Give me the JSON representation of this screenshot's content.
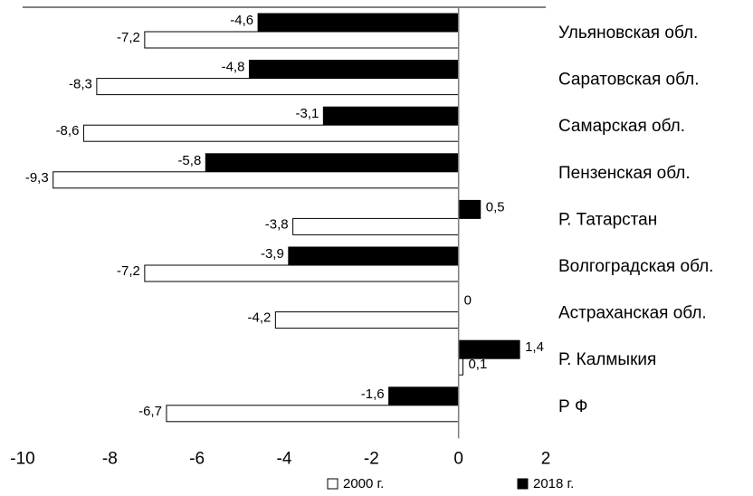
{
  "chart_data": {
    "type": "barh",
    "categories": [
      "Ульяновская обл.",
      "Саратовская обл.",
      "Самарская обл.",
      "Пензенская обл.",
      "Р. Татарстан",
      "Волгоградская обл.",
      "Астраханская обл.",
      "Р. Калмыкия",
      "Р Ф"
    ],
    "series": [
      {
        "name": "2018 г.",
        "color": "#000000",
        "values": [
          -4.6,
          -4.8,
          -3.1,
          -5.8,
          0.5,
          -3.9,
          0,
          1.4,
          -1.6
        ],
        "value_labels": [
          "-4,6",
          "-4,8",
          "-3,1",
          "-5,8",
          "0,5",
          "-3,9",
          "0",
          "1,4",
          "-1,6"
        ]
      },
      {
        "name": "2000 г.",
        "color": "#ffffff",
        "values": [
          -7.2,
          -8.3,
          -8.6,
          -9.3,
          -3.8,
          -7.2,
          -4.2,
          0.1,
          -6.7
        ],
        "value_labels": [
          "-7,2",
          "-8,3",
          "-8,6",
          "-9,3",
          "-3,8",
          "-7,2",
          "-4,2",
          "0,1",
          "-6,7"
        ]
      }
    ],
    "xlim": [
      -10,
      2
    ],
    "xticks": [
      -10,
      -8,
      -6,
      -4,
      -2,
      0,
      2
    ],
    "legend": "bottom"
  }
}
